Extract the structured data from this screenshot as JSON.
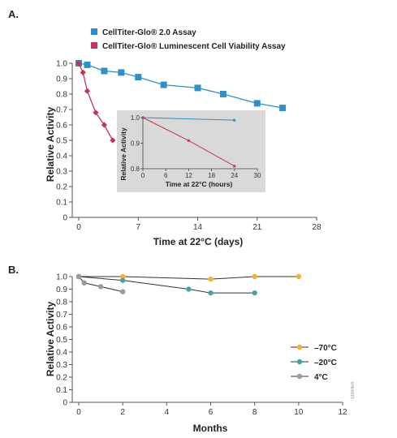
{
  "panels": {
    "a_label": "A.",
    "b_label": "B."
  },
  "colors": {
    "blue": "#2f8fc6",
    "red": "#c0355c",
    "orange": "#f2b233",
    "teal": "#4aa3a3",
    "gray": "#9a9a9a",
    "inset_bg": "#d9d9d9"
  },
  "chart_data": [
    {
      "id": "chart-a",
      "type": "line",
      "title": "",
      "xlabel": "Time at 22°C (days)",
      "ylabel": "Relative Activity",
      "xlim": [
        0,
        28
      ],
      "ylim": [
        0,
        1.0
      ],
      "xticks": [
        "0",
        "7",
        "14",
        "21",
        "28"
      ],
      "yticks": [
        "0",
        "0.1",
        "0.2",
        "0.3",
        "0.4",
        "0.5",
        "0.6",
        "0.7",
        "0.8",
        "0.9",
        "1.0"
      ],
      "legend": "top",
      "series": [
        {
          "name": "CellTiter-Glo® 2.0 Assay",
          "color": "#2f8fc6",
          "marker": "square",
          "x": [
            0,
            1,
            3,
            5,
            7,
            10,
            14,
            17,
            21,
            24
          ],
          "y": [
            1.0,
            0.99,
            0.95,
            0.94,
            0.91,
            0.86,
            0.84,
            0.8,
            0.74,
            0.71
          ]
        },
        {
          "name": "CellTiter-Glo® Luminescent Cell Viability Assay",
          "color": "#c0355c",
          "marker": "diamond",
          "x": [
            0,
            0.5,
            1,
            2,
            3,
            4
          ],
          "y": [
            1.0,
            0.94,
            0.82,
            0.68,
            0.6,
            0.5
          ]
        }
      ],
      "inset": {
        "xlabel": "Time at 22°C (hours)",
        "ylabel": "Relative Activity",
        "xlim": [
          0,
          30
        ],
        "ylim": [
          0.8,
          1.0
        ],
        "xticks": [
          "0",
          "6",
          "12",
          "18",
          "24",
          "30"
        ],
        "yticks": [
          "0.8",
          "0.9",
          "1.0"
        ],
        "series": [
          {
            "color": "#2f8fc6",
            "x": [
              0,
              24
            ],
            "y": [
              1.0,
              0.99
            ]
          },
          {
            "color": "#c0355c",
            "x": [
              0,
              12,
              24
            ],
            "y": [
              1.0,
              0.91,
              0.81
            ]
          }
        ]
      }
    },
    {
      "id": "chart-b",
      "type": "line",
      "title": "",
      "xlabel": "Months",
      "ylabel": "Relative Activity",
      "xlim": [
        0,
        12
      ],
      "ylim": [
        0,
        1.0
      ],
      "xticks": [
        "0",
        "2",
        "4",
        "6",
        "8",
        "10",
        "12"
      ],
      "yticks": [
        "0",
        "0.1",
        "0.2",
        "0.3",
        "0.4",
        "0.5",
        "0.6",
        "0.7",
        "0.8",
        "0.9",
        "1.0"
      ],
      "legend": "right",
      "series": [
        {
          "name": "–70°C",
          "color": "#f2b233",
          "x": [
            0,
            2,
            6,
            8,
            10
          ],
          "y": [
            1.0,
            1.0,
            0.98,
            1.0,
            1.0
          ]
        },
        {
          "name": "–20°C",
          "color": "#4aa3a3",
          "x": [
            0,
            2,
            5,
            6,
            8
          ],
          "y": [
            1.0,
            0.97,
            0.9,
            0.87,
            0.87
          ]
        },
        {
          "name": "4°C",
          "color": "#9a9a9a",
          "x": [
            0,
            0.25,
            1,
            2
          ],
          "y": [
            1.0,
            0.95,
            0.92,
            0.88
          ]
        }
      ]
    }
  ],
  "watermark": "13984MA"
}
